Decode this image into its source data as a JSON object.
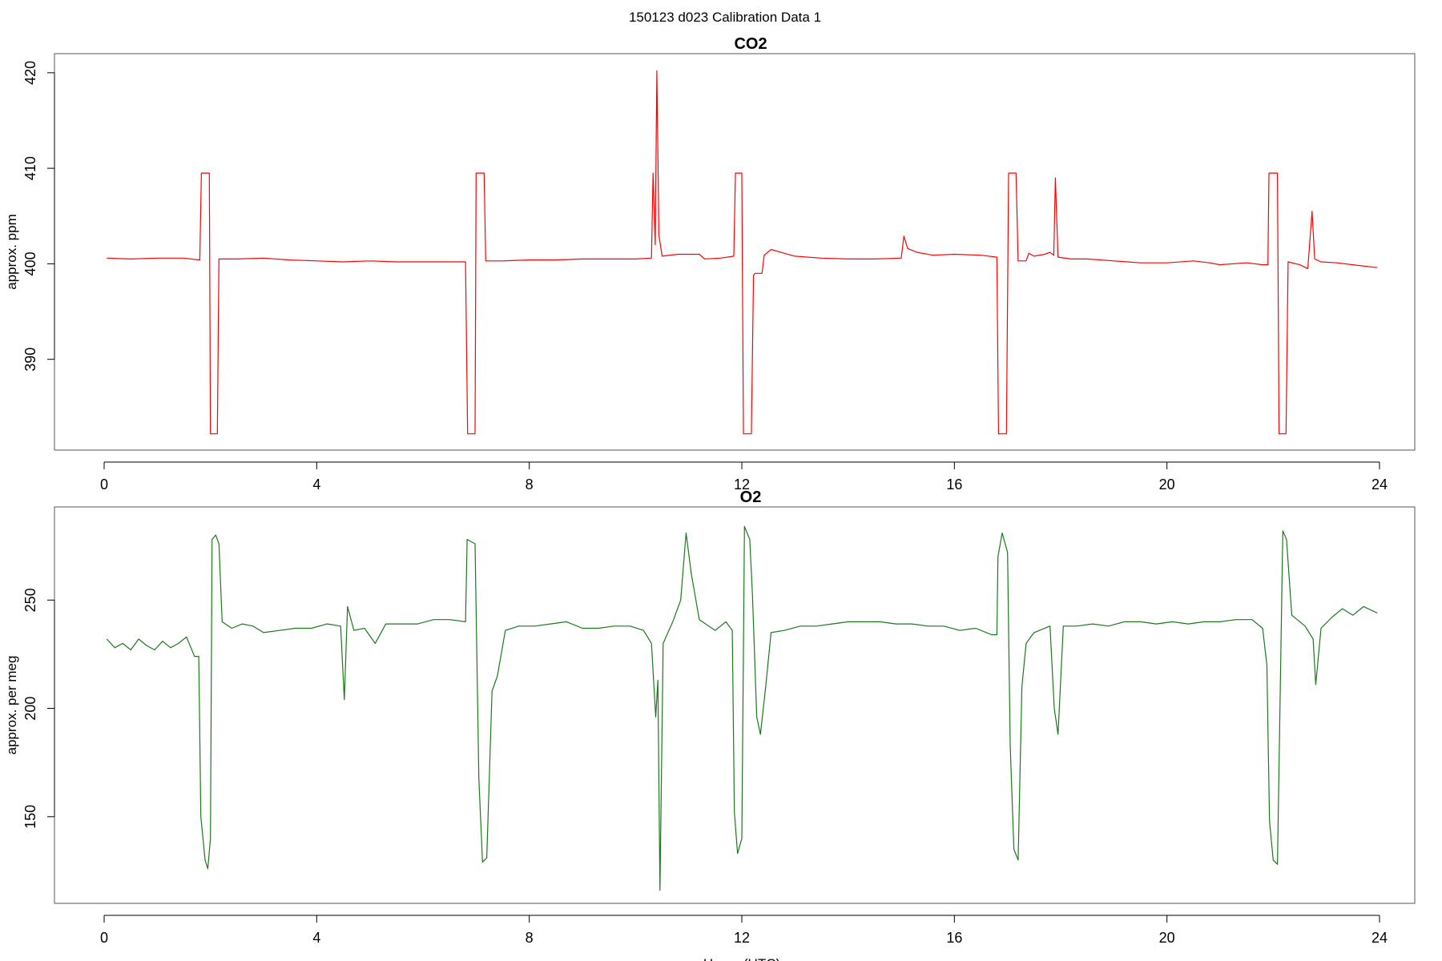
{
  "main_title": "150123   d023   Calibration Data 1",
  "chart_data": [
    {
      "type": "line",
      "title": "CO2",
      "xlabel": "",
      "ylabel": "approx. ppm",
      "xlim": [
        0,
        24
      ],
      "ylim": [
        380.5,
        422
      ],
      "xticks": [
        0,
        4,
        8,
        12,
        16,
        20,
        24
      ],
      "yticks": [
        390,
        400,
        410,
        420
      ],
      "grid": false,
      "series": [
        {
          "color": "#ff0000",
          "points": [
            [
              0.05,
              400.6
            ],
            [
              0.5,
              400.5
            ],
            [
              1.0,
              400.6
            ],
            [
              1.5,
              400.6
            ],
            [
              1.8,
              400.4
            ],
            [
              1.83,
              409.5
            ],
            [
              1.98,
              409.5
            ],
            [
              2.0,
              382.2
            ],
            [
              2.13,
              382.2
            ],
            [
              2.16,
              400.5
            ],
            [
              2.5,
              400.5
            ],
            [
              3.0,
              400.6
            ],
            [
              3.5,
              400.4
            ],
            [
              4.0,
              400.3
            ],
            [
              4.5,
              400.2
            ],
            [
              5.0,
              400.3
            ],
            [
              5.5,
              400.2
            ],
            [
              6.0,
              400.2
            ],
            [
              6.5,
              400.2
            ],
            [
              6.8,
              400.2
            ],
            [
              6.84,
              382.2
            ],
            [
              6.98,
              382.2
            ],
            [
              7.0,
              409.5
            ],
            [
              7.15,
              409.5
            ],
            [
              7.18,
              400.3
            ],
            [
              7.5,
              400.3
            ],
            [
              8.0,
              400.4
            ],
            [
              8.5,
              400.4
            ],
            [
              9.0,
              400.5
            ],
            [
              9.5,
              400.5
            ],
            [
              10.0,
              400.5
            ],
            [
              10.3,
              400.6
            ],
            [
              10.33,
              409.5
            ],
            [
              10.37,
              402.0
            ],
            [
              10.4,
              420.2
            ],
            [
              10.44,
              403.0
            ],
            [
              10.5,
              400.8
            ],
            [
              10.8,
              401.0
            ],
            [
              11.2,
              401.0
            ],
            [
              11.3,
              400.5
            ],
            [
              11.6,
              400.6
            ],
            [
              11.85,
              400.8
            ],
            [
              11.88,
              409.5
            ],
            [
              12.0,
              409.5
            ],
            [
              12.03,
              382.2
            ],
            [
              12.18,
              382.2
            ],
            [
              12.22,
              398.8
            ],
            [
              12.25,
              399.0
            ],
            [
              12.38,
              399.0
            ],
            [
              12.42,
              400.9
            ],
            [
              12.55,
              401.5
            ],
            [
              12.8,
              401.1
            ],
            [
              13.0,
              400.8
            ],
            [
              13.5,
              400.6
            ],
            [
              14.0,
              400.5
            ],
            [
              14.5,
              400.5
            ],
            [
              15.0,
              400.6
            ],
            [
              15.05,
              402.9
            ],
            [
              15.12,
              401.6
            ],
            [
              15.3,
              401.2
            ],
            [
              15.6,
              400.9
            ],
            [
              16.0,
              401.0
            ],
            [
              16.5,
              400.9
            ],
            [
              16.8,
              400.7
            ],
            [
              16.83,
              382.2
            ],
            [
              16.98,
              382.2
            ],
            [
              17.02,
              409.5
            ],
            [
              17.16,
              409.5
            ],
            [
              17.2,
              400.3
            ],
            [
              17.35,
              400.3
            ],
            [
              17.4,
              401.1
            ],
            [
              17.5,
              400.8
            ],
            [
              17.7,
              401.0
            ],
            [
              17.8,
              401.2
            ],
            [
              17.87,
              400.9
            ],
            [
              17.9,
              409.0
            ],
            [
              17.95,
              400.7
            ],
            [
              18.2,
              400.5
            ],
            [
              18.5,
              400.5
            ],
            [
              19.0,
              400.3
            ],
            [
              19.5,
              400.1
            ],
            [
              20.0,
              400.1
            ],
            [
              20.5,
              400.3
            ],
            [
              20.8,
              400.1
            ],
            [
              21.0,
              399.9
            ],
            [
              21.5,
              400.1
            ],
            [
              21.8,
              399.9
            ],
            [
              21.9,
              399.9
            ],
            [
              21.92,
              409.5
            ],
            [
              22.08,
              409.5
            ],
            [
              22.11,
              382.2
            ],
            [
              22.24,
              382.2
            ],
            [
              22.28,
              400.2
            ],
            [
              22.5,
              399.9
            ],
            [
              22.65,
              399.5
            ],
            [
              22.73,
              405.5
            ],
            [
              22.78,
              400.5
            ],
            [
              22.9,
              400.2
            ],
            [
              23.2,
              400.1
            ],
            [
              23.5,
              399.9
            ],
            [
              23.96,
              399.6
            ]
          ]
        }
      ]
    },
    {
      "type": "line",
      "title": "O2",
      "xlabel": "Hours (UTC)",
      "ylabel": "approx. per meg",
      "xlim": [
        0,
        24
      ],
      "ylim": [
        110,
        293
      ],
      "xticks": [
        0,
        4,
        8,
        12,
        16,
        20,
        24
      ],
      "yticks": [
        150,
        200,
        250
      ],
      "grid": false,
      "series": [
        {
          "color": "#1a7a1a",
          "points": [
            [
              0.05,
              232
            ],
            [
              0.2,
              228
            ],
            [
              0.35,
              230
            ],
            [
              0.5,
              227
            ],
            [
              0.65,
              232
            ],
            [
              0.8,
              229
            ],
            [
              0.95,
              227
            ],
            [
              1.1,
              231
            ],
            [
              1.25,
              228
            ],
            [
              1.4,
              230
            ],
            [
              1.55,
              233
            ],
            [
              1.7,
              224
            ],
            [
              1.78,
              224
            ],
            [
              1.82,
              150
            ],
            [
              1.9,
              130
            ],
            [
              1.95,
              126
            ],
            [
              2.0,
              140
            ],
            [
              2.03,
              278
            ],
            [
              2.1,
              280
            ],
            [
              2.16,
              276
            ],
            [
              2.22,
              240
            ],
            [
              2.4,
              237
            ],
            [
              2.6,
              239
            ],
            [
              2.8,
              238
            ],
            [
              3.0,
              235
            ],
            [
              3.3,
              236
            ],
            [
              3.6,
              237
            ],
            [
              3.9,
              237
            ],
            [
              4.2,
              239
            ],
            [
              4.45,
              238
            ],
            [
              4.52,
              204
            ],
            [
              4.58,
              247
            ],
            [
              4.7,
              236
            ],
            [
              4.9,
              237
            ],
            [
              5.1,
              230
            ],
            [
              5.3,
              239
            ],
            [
              5.6,
              239
            ],
            [
              5.9,
              239
            ],
            [
              6.2,
              241
            ],
            [
              6.5,
              241
            ],
            [
              6.8,
              240
            ],
            [
              6.83,
              278
            ],
            [
              6.98,
              276
            ],
            [
              7.05,
              168
            ],
            [
              7.12,
              129
            ],
            [
              7.2,
              131
            ],
            [
              7.3,
              208
            ],
            [
              7.4,
              215
            ],
            [
              7.55,
              236
            ],
            [
              7.8,
              238
            ],
            [
              8.1,
              238
            ],
            [
              8.4,
              239
            ],
            [
              8.7,
              240
            ],
            [
              9.0,
              237
            ],
            [
              9.3,
              237
            ],
            [
              9.6,
              238
            ],
            [
              9.9,
              238
            ],
            [
              10.15,
              236
            ],
            [
              10.3,
              230
            ],
            [
              10.38,
              196
            ],
            [
              10.42,
              213
            ],
            [
              10.46,
              116
            ],
            [
              10.52,
              230
            ],
            [
              10.7,
              240
            ],
            [
              10.85,
              250
            ],
            [
              10.95,
              281
            ],
            [
              11.05,
              262
            ],
            [
              11.2,
              241
            ],
            [
              11.5,
              236
            ],
            [
              11.7,
              240
            ],
            [
              11.82,
              236
            ],
            [
              11.86,
              152
            ],
            [
              11.92,
              133
            ],
            [
              12.0,
              140
            ],
            [
              12.05,
              284
            ],
            [
              12.15,
              278
            ],
            [
              12.2,
              252
            ],
            [
              12.28,
              196
            ],
            [
              12.35,
              188
            ],
            [
              12.45,
              210
            ],
            [
              12.55,
              235
            ],
            [
              12.8,
              236
            ],
            [
              13.1,
              238
            ],
            [
              13.4,
              238
            ],
            [
              13.7,
              239
            ],
            [
              14.0,
              240
            ],
            [
              14.3,
              240
            ],
            [
              14.6,
              240
            ],
            [
              14.9,
              239
            ],
            [
              15.2,
              239
            ],
            [
              15.5,
              238
            ],
            [
              15.8,
              238
            ],
            [
              16.1,
              236
            ],
            [
              16.4,
              237
            ],
            [
              16.7,
              234
            ],
            [
              16.8,
              234
            ],
            [
              16.82,
              270
            ],
            [
              16.9,
              281
            ],
            [
              17.0,
              272
            ],
            [
              17.05,
              183
            ],
            [
              17.12,
              135
            ],
            [
              17.2,
              130
            ],
            [
              17.27,
              210
            ],
            [
              17.35,
              230
            ],
            [
              17.5,
              235
            ],
            [
              17.8,
              238
            ],
            [
              17.88,
              200
            ],
            [
              17.95,
              188
            ],
            [
              18.05,
              238
            ],
            [
              18.3,
              238
            ],
            [
              18.6,
              239
            ],
            [
              18.9,
              238
            ],
            [
              19.2,
              240
            ],
            [
              19.5,
              240
            ],
            [
              19.8,
              239
            ],
            [
              20.1,
              240
            ],
            [
              20.4,
              239
            ],
            [
              20.7,
              240
            ],
            [
              21.0,
              240
            ],
            [
              21.3,
              241
            ],
            [
              21.6,
              241
            ],
            [
              21.8,
              237
            ],
            [
              21.88,
              220
            ],
            [
              21.93,
              148
            ],
            [
              22.0,
              130
            ],
            [
              22.08,
              128
            ],
            [
              22.12,
              190
            ],
            [
              22.18,
              282
            ],
            [
              22.25,
              278
            ],
            [
              22.35,
              243
            ],
            [
              22.6,
              238
            ],
            [
              22.75,
              232
            ],
            [
              22.8,
              211
            ],
            [
              22.9,
              237
            ],
            [
              23.1,
              242
            ],
            [
              23.3,
              246
            ],
            [
              23.5,
              243
            ],
            [
              23.7,
              247
            ],
            [
              23.96,
              244
            ]
          ]
        }
      ]
    }
  ]
}
